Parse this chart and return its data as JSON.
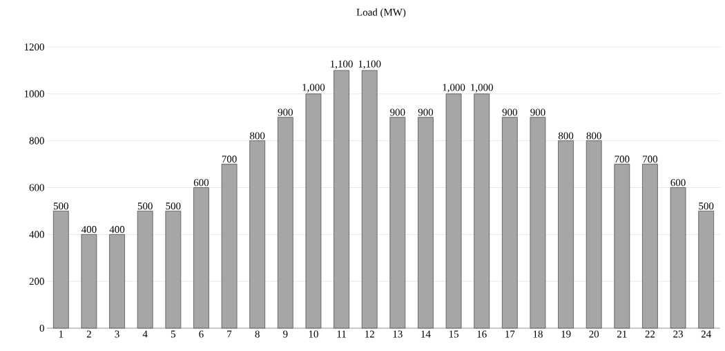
{
  "chart_data": {
    "type": "bar",
    "title": "Load (MW)",
    "categories": [
      "1",
      "2",
      "3",
      "4",
      "5",
      "6",
      "7",
      "8",
      "9",
      "10",
      "11",
      "12",
      "13",
      "14",
      "15",
      "16",
      "17",
      "18",
      "19",
      "20",
      "21",
      "22",
      "23",
      "24"
    ],
    "values": [
      500,
      400,
      400,
      500,
      500,
      600,
      700,
      800,
      900,
      1000,
      1100,
      1100,
      900,
      900,
      1000,
      1000,
      900,
      900,
      800,
      800,
      700,
      700,
      600,
      500
    ],
    "value_labels": [
      "500",
      "400",
      "400",
      "500",
      "500",
      "600",
      "700",
      "800",
      "900",
      "1,000",
      "1,100",
      "1,100",
      "900",
      "900",
      "1,000",
      "1,000",
      "900",
      "900",
      "800",
      "800",
      "700",
      "700",
      "600",
      "500"
    ],
    "color": "#a6a6a6",
    "ylim": [
      0,
      1200
    ],
    "yticks": [
      0,
      200,
      400,
      600,
      800,
      1000,
      1200
    ],
    "grid": "y"
  }
}
